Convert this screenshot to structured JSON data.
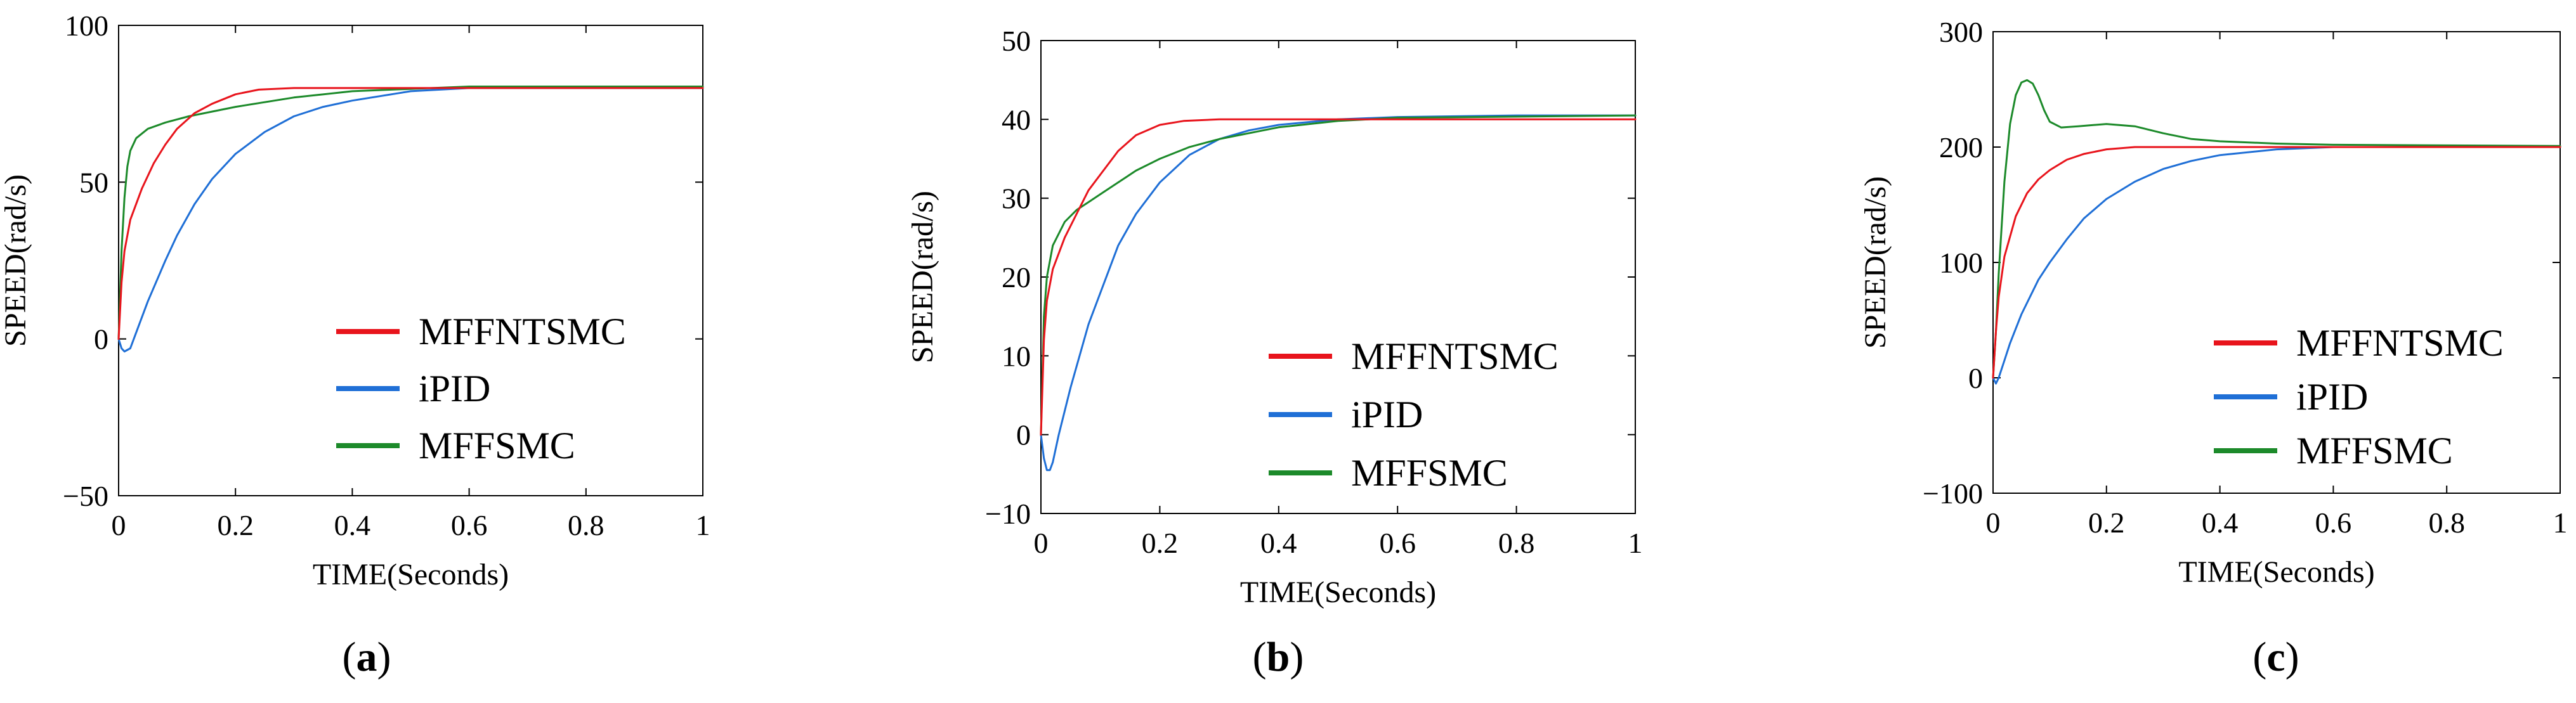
{
  "figure": {
    "colors": {
      "MFFNTSMC": "#e8141c",
      "iPID": "#1f6fd6",
      "MFFSMC": "#1c8a2a"
    }
  },
  "chart_data": [
    {
      "type": "line",
      "caption": "a",
      "xlabel": "TIME(Seconds)",
      "ylabel": "SPEED(rad/s)",
      "xlim": [
        0,
        1
      ],
      "ylim": [
        -50,
        100
      ],
      "xticks": [
        0,
        0.2,
        0.4,
        0.6,
        0.8,
        1
      ],
      "xtick_labels": [
        "0",
        "0.2",
        "0.4",
        "0.6",
        "0.8",
        "1"
      ],
      "yticks": [
        -50,
        0,
        50,
        100
      ],
      "ytick_labels": [
        "−50",
        "0",
        "50",
        "100"
      ],
      "legend": [
        "MFFNTSMC",
        "iPID",
        "MFFSMC"
      ],
      "series": [
        {
          "name": "MFFNTSMC",
          "x": [
            0,
            0.005,
            0.01,
            0.02,
            0.04,
            0.06,
            0.08,
            0.1,
            0.13,
            0.16,
            0.2,
            0.24,
            0.3,
            0.4,
            0.6,
            1.0
          ],
          "y": [
            0,
            18,
            28,
            38,
            48,
            56,
            62,
            67,
            72,
            75,
            78,
            79.5,
            80,
            80,
            80,
            80
          ]
        },
        {
          "name": "iPID",
          "x": [
            0,
            0.005,
            0.01,
            0.02,
            0.03,
            0.05,
            0.08,
            0.1,
            0.13,
            0.16,
            0.2,
            0.25,
            0.3,
            0.35,
            0.4,
            0.5,
            0.6,
            0.8,
            1.0
          ],
          "y": [
            0,
            -3,
            -4,
            -3,
            2,
            12,
            25,
            33,
            43,
            51,
            59,
            66,
            71,
            74,
            76,
            79,
            80,
            80,
            80
          ]
        },
        {
          "name": "MFFSMC",
          "x": [
            0,
            0.005,
            0.01,
            0.015,
            0.02,
            0.03,
            0.05,
            0.08,
            0.12,
            0.2,
            0.3,
            0.4,
            0.6,
            1.0
          ],
          "y": [
            0,
            28,
            45,
            55,
            60,
            64,
            67,
            69,
            71,
            74,
            77,
            79,
            80.5,
            80.5
          ]
        }
      ]
    },
    {
      "type": "line",
      "caption": "b",
      "xlabel": "TIME(Seconds)",
      "ylabel": "SPEED(rad/s)",
      "xlim": [
        0,
        1
      ],
      "ylim": [
        -10,
        50
      ],
      "xticks": [
        0,
        0.2,
        0.4,
        0.6,
        0.8,
        1
      ],
      "xtick_labels": [
        "0",
        "0.2",
        "0.4",
        "0.6",
        "0.8",
        "1"
      ],
      "yticks": [
        -10,
        0,
        10,
        20,
        30,
        40,
        50
      ],
      "ytick_labels": [
        "−10",
        "0",
        "10",
        "20",
        "30",
        "40",
        "50"
      ],
      "legend": [
        "MFFNTSMC",
        "iPID",
        "MFFSMC"
      ],
      "series": [
        {
          "name": "MFFNTSMC",
          "x": [
            0,
            0.005,
            0.01,
            0.02,
            0.04,
            0.06,
            0.08,
            0.1,
            0.13,
            0.16,
            0.2,
            0.24,
            0.3,
            0.4,
            0.6,
            1.0
          ],
          "y": [
            0,
            12,
            17,
            21,
            25,
            28,
            31,
            33,
            36,
            38,
            39.3,
            39.8,
            40,
            40,
            40,
            40
          ]
        },
        {
          "name": "iPID",
          "x": [
            0,
            0.005,
            0.01,
            0.015,
            0.02,
            0.03,
            0.05,
            0.08,
            0.1,
            0.13,
            0.16,
            0.2,
            0.25,
            0.3,
            0.35,
            0.4,
            0.5,
            0.6,
            0.8,
            1.0
          ],
          "y": [
            0,
            -3,
            -4.5,
            -4.5,
            -3.5,
            0,
            6,
            14,
            18,
            24,
            28,
            32,
            35.5,
            37.5,
            38.6,
            39.3,
            40,
            40.3,
            40.5,
            40.5
          ]
        },
        {
          "name": "MFFSMC",
          "x": [
            0,
            0.005,
            0.01,
            0.02,
            0.04,
            0.06,
            0.08,
            0.1,
            0.13,
            0.16,
            0.2,
            0.25,
            0.3,
            0.4,
            0.5,
            0.6,
            1.0
          ],
          "y": [
            0,
            15,
            20,
            24,
            27,
            28.5,
            29.5,
            30.5,
            32,
            33.5,
            35,
            36.5,
            37.5,
            39,
            39.8,
            40.2,
            40.5
          ]
        }
      ]
    },
    {
      "type": "line",
      "caption": "c",
      "xlabel": "TIME(Seconds)",
      "ylabel": "SPEED(rad/s)",
      "xlim": [
        0,
        1
      ],
      "ylim": [
        -100,
        300
      ],
      "xticks": [
        0,
        0.2,
        0.4,
        0.6,
        0.8,
        1
      ],
      "xtick_labels": [
        "0",
        "0.2",
        "0.4",
        "0.6",
        "0.8",
        "1"
      ],
      "yticks": [
        -100,
        0,
        100,
        200,
        300
      ],
      "ytick_labels": [
        "−100",
        "0",
        "100",
        "200",
        "300"
      ],
      "legend": [
        "MFFNTSMC",
        "iPID",
        "MFFSMC"
      ],
      "series": [
        {
          "name": "MFFNTSMC",
          "x": [
            0,
            0.005,
            0.01,
            0.02,
            0.04,
            0.06,
            0.08,
            0.1,
            0.13,
            0.16,
            0.2,
            0.25,
            0.3,
            0.4,
            0.6,
            1.0
          ],
          "y": [
            0,
            40,
            70,
            105,
            140,
            160,
            172,
            180,
            189,
            194,
            198,
            200,
            200,
            200,
            200,
            200
          ]
        },
        {
          "name": "iPID",
          "x": [
            0,
            0.005,
            0.01,
            0.02,
            0.03,
            0.05,
            0.08,
            0.1,
            0.13,
            0.16,
            0.2,
            0.25,
            0.3,
            0.35,
            0.4,
            0.5,
            0.6,
            0.8,
            1.0
          ],
          "y": [
            0,
            -5,
            0,
            15,
            30,
            55,
            85,
            100,
            120,
            138,
            155,
            170,
            181,
            188,
            193,
            198,
            200,
            200,
            200
          ]
        },
        {
          "name": "MFFSMC",
          "x": [
            0,
            0.005,
            0.01,
            0.02,
            0.03,
            0.04,
            0.05,
            0.06,
            0.07,
            0.08,
            0.09,
            0.1,
            0.12,
            0.15,
            0.2,
            0.25,
            0.3,
            0.35,
            0.4,
            0.5,
            0.6,
            1.0
          ],
          "y": [
            0,
            40,
            90,
            170,
            220,
            245,
            256,
            258,
            255,
            245,
            232,
            222,
            217,
            218,
            220,
            218,
            212,
            207,
            205,
            203,
            202,
            201
          ]
        }
      ]
    }
  ]
}
